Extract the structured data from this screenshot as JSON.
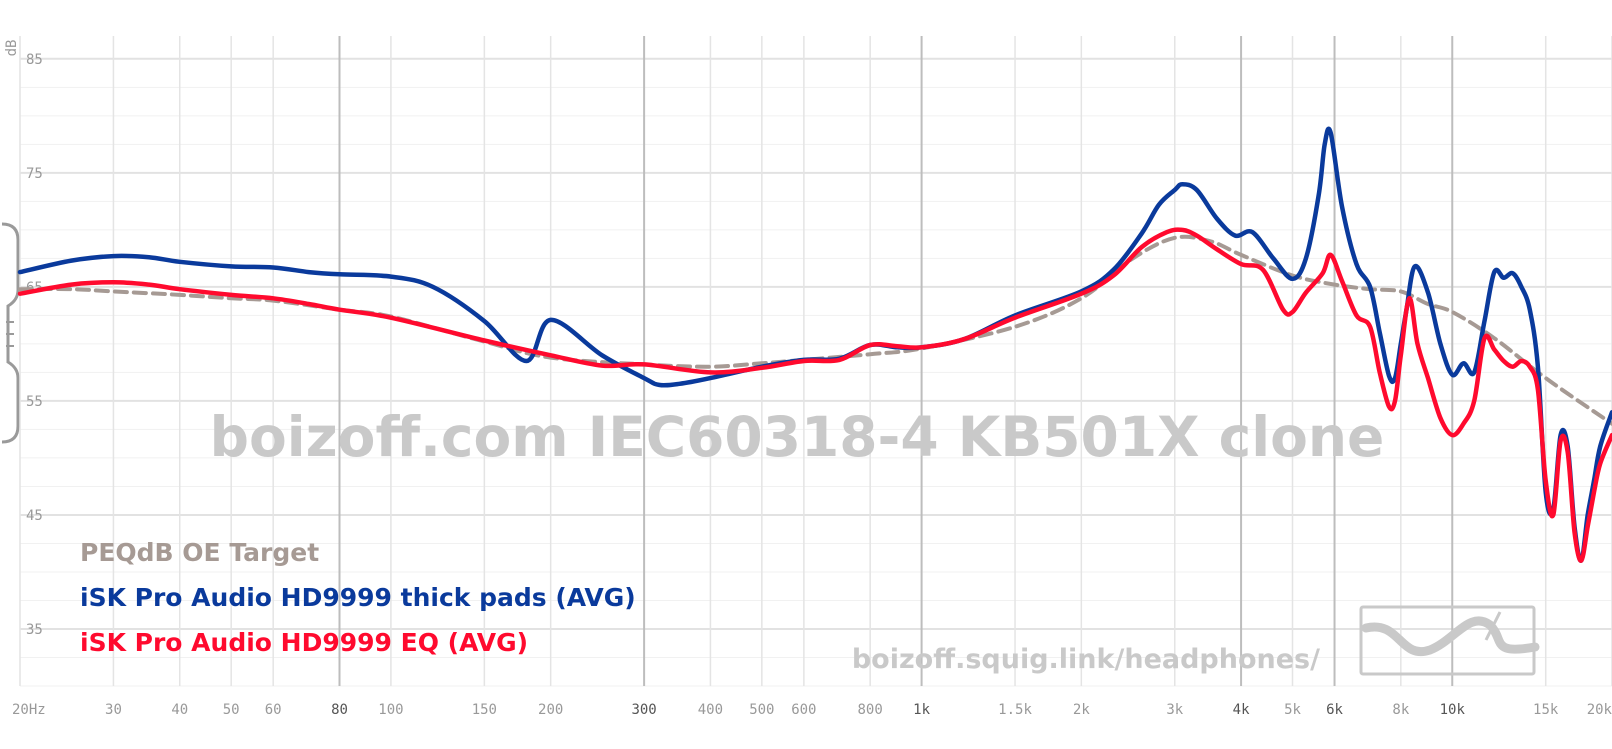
{
  "chart_data": {
    "type": "line",
    "ylabel": "dB",
    "xscale": "log",
    "xlim": [
      20,
      20000
    ],
    "ylim": [
      30,
      87
    ],
    "grid": true,
    "legend_position": "bottom-left",
    "y_ticks": [
      35,
      45,
      55,
      65,
      75,
      85
    ],
    "x_ticks": [
      {
        "value": 20,
        "label": "20Hz"
      },
      {
        "value": 30,
        "label": "30"
      },
      {
        "value": 40,
        "label": "40"
      },
      {
        "value": 50,
        "label": "50"
      },
      {
        "value": 60,
        "label": "60"
      },
      {
        "value": 80,
        "label": "80",
        "major": true
      },
      {
        "value": 100,
        "label": "100"
      },
      {
        "value": 150,
        "label": "150"
      },
      {
        "value": 200,
        "label": "200"
      },
      {
        "value": 300,
        "label": "300",
        "major": true
      },
      {
        "value": 400,
        "label": "400"
      },
      {
        "value": 500,
        "label": "500"
      },
      {
        "value": 600,
        "label": "600"
      },
      {
        "value": 800,
        "label": "800"
      },
      {
        "value": 1000,
        "label": "1k",
        "major": true
      },
      {
        "value": 1500,
        "label": "1.5k"
      },
      {
        "value": 2000,
        "label": "2k"
      },
      {
        "value": 3000,
        "label": "3k"
      },
      {
        "value": 4000,
        "label": "4k",
        "major": true
      },
      {
        "value": 5000,
        "label": "5k"
      },
      {
        "value": 6000,
        "label": "6k",
        "major": true
      },
      {
        "value": 8000,
        "label": "8k"
      },
      {
        "value": 10000,
        "label": "10k",
        "major": true
      },
      {
        "value": 15000,
        "label": "15k"
      },
      {
        "value": 20000,
        "label": "20k"
      }
    ],
    "series": [
      {
        "name": "PEQdB OE Target",
        "color": "#a69a94",
        "dashed": true,
        "x": [
          20,
          25,
          30,
          40,
          50,
          60,
          80,
          100,
          150,
          200,
          300,
          400,
          500,
          600,
          800,
          1000,
          1500,
          2000,
          2500,
          3000,
          3500,
          4000,
          5000,
          6000,
          7000,
          8000,
          9000,
          10000,
          12000,
          15000,
          20000
        ],
        "y": [
          64.8,
          64.8,
          64.6,
          64.3,
          64.0,
          63.8,
          63.0,
          62.4,
          60.2,
          58.8,
          58.2,
          58.0,
          58.3,
          58.6,
          59.1,
          59.6,
          61.5,
          64.0,
          67.5,
          69.3,
          69.0,
          67.8,
          66.0,
          65.2,
          64.8,
          64.6,
          63.5,
          62.8,
          60.5,
          57.0,
          53.0
        ]
      },
      {
        "name": "iSK Pro Audio HD9999 thick pads (AVG)",
        "color": "#0a3a9c",
        "dashed": false,
        "x": [
          20,
          25,
          30,
          35,
          40,
          50,
          60,
          70,
          80,
          100,
          120,
          150,
          180,
          200,
          250,
          300,
          320,
          350,
          400,
          500,
          600,
          700,
          800,
          900,
          1000,
          1200,
          1500,
          2000,
          2300,
          2600,
          2800,
          3000,
          3100,
          3300,
          3600,
          3900,
          4200,
          4600,
          5000,
          5300,
          5600,
          5750,
          5900,
          6200,
          6600,
          7000,
          7300,
          7600,
          7800,
          8000,
          8200,
          8500,
          9000,
          9500,
          10000,
          10500,
          11000,
          11500,
          12000,
          12500,
          13000,
          13500,
          14000,
          14500,
          15000,
          15500,
          16000,
          16500,
          17000,
          17500,
          18000,
          18500,
          19000,
          20000
        ],
        "y": [
          66.3,
          67.3,
          67.7,
          67.6,
          67.2,
          66.8,
          66.7,
          66.3,
          66.1,
          65.9,
          65.0,
          62.0,
          58.5,
          62.1,
          59.0,
          57.0,
          56.4,
          56.5,
          57.0,
          58.0,
          58.6,
          58.7,
          59.9,
          59.7,
          59.7,
          60.4,
          62.5,
          64.6,
          66.5,
          69.7,
          72.2,
          73.5,
          74.0,
          73.5,
          71.0,
          69.5,
          69.8,
          67.5,
          65.7,
          67.5,
          73.0,
          77.5,
          78.5,
          72.0,
          67.0,
          65.0,
          61.0,
          57.2,
          57.0,
          60.0,
          63.0,
          66.8,
          64.5,
          60.0,
          57.3,
          58.3,
          57.5,
          62.0,
          66.3,
          65.8,
          66.2,
          65.0,
          63.0,
          58.0,
          47.0,
          45.5,
          52.0,
          51.0,
          44.0,
          41.0,
          45.0,
          48.0,
          51.0,
          54.0
        ]
      },
      {
        "name": "iSK Pro Audio HD9999 EQ (AVG)",
        "color": "#ff0a2e",
        "dashed": false,
        "x": [
          20,
          25,
          30,
          35,
          40,
          50,
          60,
          70,
          80,
          100,
          150,
          200,
          250,
          300,
          400,
          500,
          600,
          700,
          800,
          900,
          1000,
          1200,
          1500,
          2000,
          2300,
          2600,
          2900,
          3100,
          3300,
          3600,
          4000,
          4400,
          4800,
          5000,
          5300,
          5700,
          5900,
          6200,
          6600,
          7000,
          7300,
          7600,
          7800,
          8000,
          8300,
          8600,
          9000,
          9500,
          10000,
          10500,
          11000,
          11500,
          12000,
          12500,
          13000,
          13500,
          14000,
          14500,
          15000,
          15500,
          16000,
          16500,
          17000,
          17500,
          18000,
          18500,
          19000,
          20000
        ],
        "y": [
          64.4,
          65.2,
          65.4,
          65.2,
          64.8,
          64.3,
          64.0,
          63.5,
          63.0,
          62.3,
          60.3,
          59.0,
          58.1,
          58.2,
          57.5,
          57.9,
          58.5,
          58.6,
          59.9,
          59.8,
          59.7,
          60.4,
          62.3,
          64.4,
          66.0,
          68.5,
          69.8,
          70.0,
          69.5,
          68.3,
          67.0,
          66.5,
          63.0,
          62.8,
          64.5,
          66.2,
          67.8,
          65.5,
          62.5,
          61.5,
          57.5,
          54.5,
          55.0,
          59.0,
          64.0,
          60.0,
          57.0,
          53.5,
          52.0,
          53.0,
          55.0,
          60.5,
          59.5,
          58.5,
          58.0,
          58.5,
          58.0,
          56.0,
          48.0,
          45.0,
          51.5,
          50.5,
          43.5,
          41.0,
          44.0,
          47.0,
          49.5,
          52.0
        ]
      }
    ]
  },
  "watermark": {
    "title": "boizoff.com IEC60318-4 KB501X clone",
    "url": "boizoff.squig.link/headphones/"
  },
  "icons": {
    "logo": "squiglink-wave-logo",
    "handle": "sidebar-drag-handle"
  }
}
